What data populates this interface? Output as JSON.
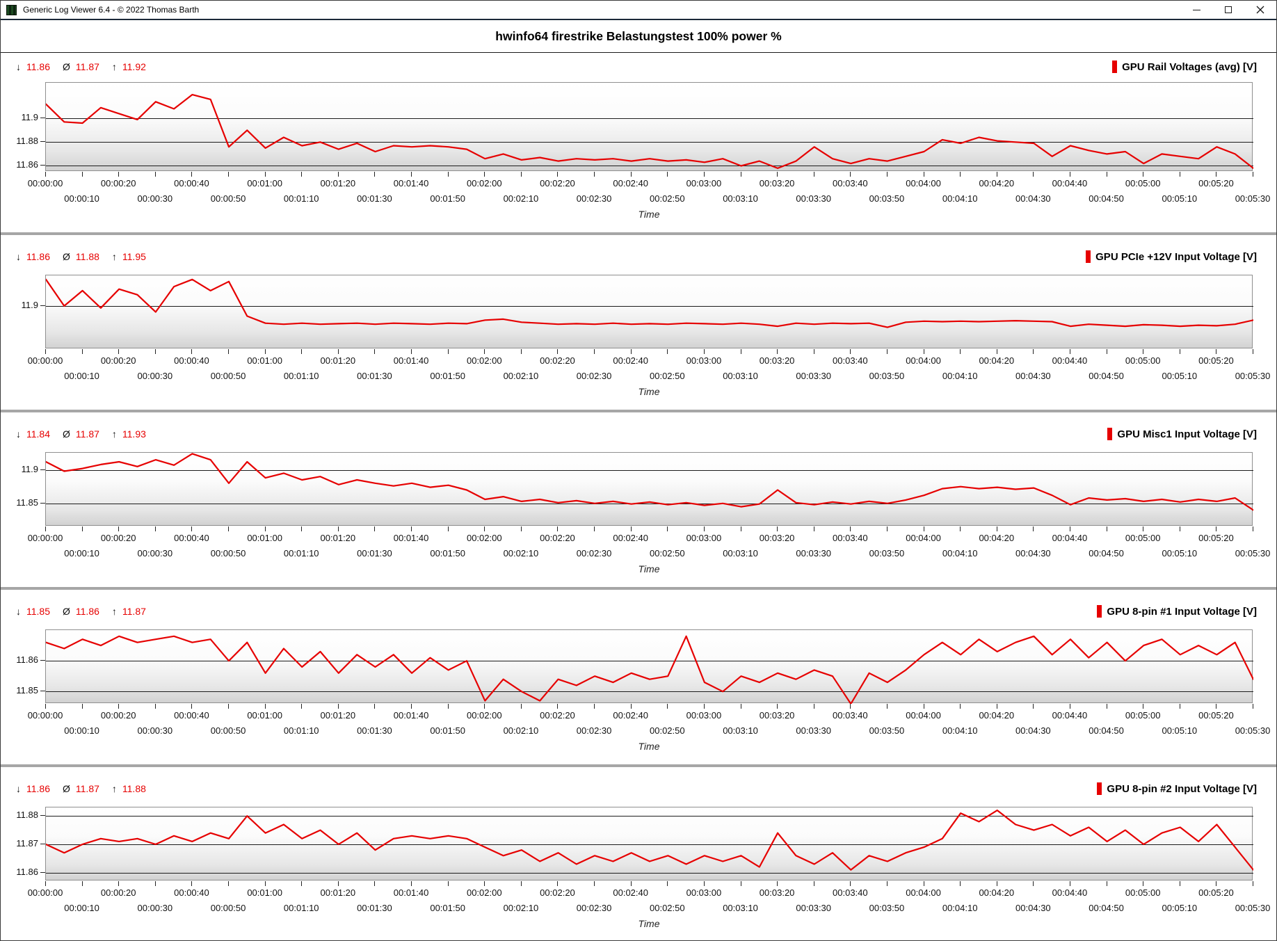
{
  "window": {
    "title": "Generic Log Viewer 6.4 - © 2022 Thomas Barth",
    "icons": {
      "app": "app-icon",
      "minimize": "minimize-icon",
      "maximize": "maximize-icon",
      "close": "close-icon"
    }
  },
  "header": {
    "title": "hwinfo64 firestrike Belastungstest 100% power %"
  },
  "stats_glyphs": {
    "min": "↓",
    "avg": "Ø",
    "max": "↑"
  },
  "time_axis": {
    "xlabel": "Time",
    "row1": [
      "00:00:00",
      "00:00:20",
      "00:00:40",
      "00:01:00",
      "00:01:20",
      "00:01:40",
      "00:02:00",
      "00:02:20",
      "00:02:40",
      "00:03:00",
      "00:03:20",
      "00:03:40",
      "00:04:00",
      "00:04:20",
      "00:04:40",
      "00:05:00",
      "00:05:20"
    ],
    "row2": [
      "00:00:10",
      "00:00:30",
      "00:00:50",
      "00:01:10",
      "00:01:30",
      "00:01:50",
      "00:02:10",
      "00:02:30",
      "00:02:50",
      "00:03:10",
      "00:03:30",
      "00:03:50",
      "00:04:10",
      "00:04:30",
      "00:04:50",
      "00:05:10",
      "00:05:30"
    ]
  },
  "chart_data": {
    "type": "line",
    "x_unit": "seconds",
    "x_step_seconds": 5,
    "x_max_seconds": 330,
    "grid": "horizontal-only",
    "legend_position": "top-right",
    "line_color": "#e60000",
    "charts": [
      {
        "legend": "GPU Rail Voltages (avg) [V]",
        "stats": {
          "min": "11.86",
          "avg": "11.87",
          "max": "11.92"
        },
        "ylim": [
          11.855,
          11.93
        ],
        "gridlines": [
          11.9,
          11.88,
          11.86
        ],
        "gridline_labels": [
          "11.9",
          "11.88",
          "11.86"
        ],
        "values": [
          11.912,
          11.897,
          11.896,
          11.909,
          11.904,
          11.899,
          11.914,
          11.908,
          11.92,
          11.916,
          11.876,
          11.89,
          11.875,
          11.884,
          11.877,
          11.88,
          11.874,
          11.879,
          11.872,
          11.877,
          11.876,
          11.877,
          11.876,
          11.874,
          11.866,
          11.87,
          11.865,
          11.867,
          11.864,
          11.866,
          11.865,
          11.866,
          11.864,
          11.866,
          11.864,
          11.865,
          11.863,
          11.866,
          11.86,
          11.864,
          11.858,
          11.864,
          11.876,
          11.866,
          11.862,
          11.866,
          11.864,
          11.868,
          11.872,
          11.882,
          11.879,
          11.884,
          11.881,
          11.88,
          11.879,
          11.868,
          11.877,
          11.873,
          11.87,
          11.872,
          11.862,
          11.87,
          11.868,
          11.866,
          11.876,
          11.87,
          11.858
        ]
      },
      {
        "legend": "GPU PCIe +12V Input Voltage [V]",
        "stats": {
          "min": "11.86",
          "avg": "11.88",
          "max": "11.95"
        },
        "ylim": [
          11.815,
          11.96
        ],
        "gridlines": [
          11.9
        ],
        "gridline_labels": [
          "11.9"
        ],
        "values": [
          11.952,
          11.9,
          11.93,
          11.896,
          11.933,
          11.922,
          11.888,
          11.938,
          11.952,
          11.93,
          11.948,
          11.88,
          11.866,
          11.864,
          11.866,
          11.864,
          11.865,
          11.866,
          11.864,
          11.866,
          11.865,
          11.864,
          11.866,
          11.865,
          11.872,
          11.874,
          11.868,
          11.866,
          11.864,
          11.865,
          11.864,
          11.866,
          11.864,
          11.865,
          11.864,
          11.866,
          11.865,
          11.864,
          11.866,
          11.864,
          11.86,
          11.866,
          11.864,
          11.866,
          11.865,
          11.866,
          11.858,
          11.868,
          11.87,
          11.869,
          11.87,
          11.869,
          11.87,
          11.871,
          11.87,
          11.869,
          11.86,
          11.864,
          11.862,
          11.86,
          11.863,
          11.862,
          11.86,
          11.862,
          11.861,
          11.864,
          11.872
        ]
      },
      {
        "legend": "GPU Misc1 Input Voltage [V]",
        "stats": {
          "min": "11.84",
          "avg": "11.87",
          "max": "11.93"
        },
        "ylim": [
          11.8155,
          11.9255
        ],
        "gridlines": [
          11.9,
          11.85
        ],
        "gridline_labels": [
          "11.9",
          "11.85"
        ],
        "values": [
          11.912,
          11.898,
          11.902,
          11.908,
          11.912,
          11.905,
          11.915,
          11.907,
          11.924,
          11.915,
          11.88,
          11.912,
          11.888,
          11.895,
          11.885,
          11.89,
          11.878,
          11.885,
          11.88,
          11.876,
          11.88,
          11.874,
          11.877,
          11.87,
          11.856,
          11.86,
          11.853,
          11.856,
          11.851,
          11.854,
          11.85,
          11.853,
          11.849,
          11.852,
          11.848,
          11.851,
          11.847,
          11.85,
          11.845,
          11.849,
          11.87,
          11.851,
          11.848,
          11.852,
          11.849,
          11.853,
          11.85,
          11.855,
          11.862,
          11.872,
          11.875,
          11.872,
          11.874,
          11.871,
          11.873,
          11.862,
          11.848,
          11.858,
          11.855,
          11.857,
          11.853,
          11.856,
          11.852,
          11.856,
          11.853,
          11.858,
          11.84
        ]
      },
      {
        "legend": "GPU 8-pin #1 Input Voltage [V]",
        "stats": {
          "min": "11.85",
          "avg": "11.86",
          "max": "11.87"
        },
        "ylim": [
          11.846,
          11.87
        ],
        "gridlines": [
          11.86,
          11.85
        ],
        "gridline_labels": [
          "11.86",
          "11.85"
        ],
        "values": [
          11.866,
          11.864,
          11.867,
          11.865,
          11.868,
          11.866,
          11.867,
          11.868,
          11.866,
          11.867,
          11.86,
          11.866,
          11.856,
          11.864,
          11.858,
          11.863,
          11.856,
          11.862,
          11.858,
          11.862,
          11.856,
          11.861,
          11.857,
          11.86,
          11.847,
          11.854,
          11.85,
          11.847,
          11.854,
          11.852,
          11.855,
          11.853,
          11.856,
          11.854,
          11.855,
          11.868,
          11.853,
          11.85,
          11.855,
          11.853,
          11.856,
          11.854,
          11.857,
          11.855,
          11.846,
          11.856,
          11.853,
          11.857,
          11.862,
          11.866,
          11.862,
          11.867,
          11.863,
          11.866,
          11.868,
          11.862,
          11.867,
          11.861,
          11.866,
          11.86,
          11.865,
          11.867,
          11.862,
          11.865,
          11.862,
          11.866,
          11.854
        ]
      },
      {
        "legend": "GPU 8-pin #2 Input Voltage [V]",
        "stats": {
          "min": "11.86",
          "avg": "11.87",
          "max": "11.88"
        },
        "ylim": [
          11.857,
          11.883
        ],
        "gridlines": [
          11.88,
          11.87,
          11.86
        ],
        "gridline_labels": [
          "11.88",
          "11.87",
          "11.86"
        ],
        "values": [
          11.87,
          11.867,
          11.87,
          11.872,
          11.871,
          11.872,
          11.87,
          11.873,
          11.871,
          11.874,
          11.872,
          11.88,
          11.874,
          11.877,
          11.872,
          11.875,
          11.87,
          11.874,
          11.868,
          11.872,
          11.873,
          11.872,
          11.873,
          11.872,
          11.869,
          11.866,
          11.868,
          11.864,
          11.867,
          11.863,
          11.866,
          11.864,
          11.867,
          11.864,
          11.866,
          11.863,
          11.866,
          11.864,
          11.866,
          11.862,
          11.874,
          11.866,
          11.863,
          11.867,
          11.861,
          11.866,
          11.864,
          11.867,
          11.869,
          11.872,
          11.881,
          11.878,
          11.882,
          11.877,
          11.875,
          11.877,
          11.873,
          11.876,
          11.871,
          11.875,
          11.87,
          11.874,
          11.876,
          11.871,
          11.877,
          11.869,
          11.861
        ]
      }
    ]
  }
}
